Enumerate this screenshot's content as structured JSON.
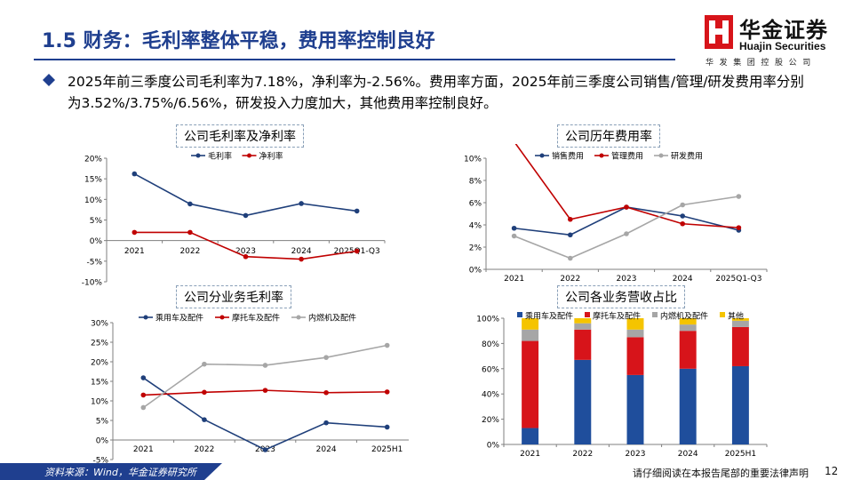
{
  "header": {
    "title": "1.5 财务：毛利率整体平稳，费用率控制良好",
    "logo": {
      "name_cn": "华金证券",
      "name_en": "Huajin Securities",
      "subtitle": "华发集团控股公司"
    }
  },
  "bullet": {
    "text": "2025年前三季度公司毛利率为7.18%，净利率为-2.56%。费用率方面，2025年前三季度公司销售/管理/研发费用率分别为3.52%/3.75%/6.56%，研发投入力度加大，其他费用率控制良好。"
  },
  "footer": {
    "source": "资料来源：Wind，华金证券研究所",
    "disclaimer": "请仔细阅读在本报告尾部的重要法律声明",
    "page": "12"
  },
  "colors": {
    "brand": "#1f3f8f",
    "logo_red": "#d7141a",
    "navy": "#1f3f7a",
    "red": "#c00000",
    "gray": "#a6a6a6",
    "blue": "#1f4e9c",
    "red_bar": "#d7141a",
    "gray_bar": "#a6a6a6",
    "yellow": "#f5c400"
  },
  "chart_data": [
    {
      "id": "margin",
      "type": "line",
      "title": "公司毛利率及净利率",
      "categories": [
        "2021",
        "2022",
        "2023",
        "2024",
        "2025Q1-Q3"
      ],
      "series": [
        {
          "name": "毛利率",
          "color": "#1f3f7a",
          "values": [
            16.2,
            8.9,
            6.1,
            9.0,
            7.18
          ]
        },
        {
          "name": "净利率",
          "color": "#c00000",
          "values": [
            2.0,
            2.0,
            -3.9,
            -4.5,
            -2.56
          ]
        }
      ],
      "ylim": [
        -10,
        20
      ],
      "yticks": [
        "-10%",
        "-5%",
        "0%",
        "5%",
        "10%",
        "15%",
        "20%"
      ],
      "legend": "top-center"
    },
    {
      "id": "expense",
      "type": "line",
      "title": "公司历年费用率",
      "categories": [
        "2021",
        "2022",
        "2023",
        "2024",
        "2025Q1-Q3"
      ],
      "series": [
        {
          "name": "销售费用",
          "color": "#1f3f7a",
          "values": [
            3.7,
            3.1,
            5.6,
            4.8,
            3.52
          ]
        },
        {
          "name": "管理费用",
          "color": "#c00000",
          "values": [
            11.5,
            4.5,
            5.6,
            4.1,
            3.75
          ]
        },
        {
          "name": "研发费用",
          "color": "#a6a6a6",
          "values": [
            3.0,
            1.0,
            3.2,
            5.8,
            6.56
          ]
        }
      ],
      "ylim": [
        0,
        10
      ],
      "yticks": [
        "0%",
        "2%",
        "4%",
        "6%",
        "8%",
        "10%"
      ],
      "legend": "top-center"
    },
    {
      "id": "segment-margin",
      "type": "line",
      "title": "公司分业务毛利率",
      "categories": [
        "2021",
        "2022",
        "2023",
        "2024",
        "2025H1"
      ],
      "series": [
        {
          "name": "乘用车及配件",
          "color": "#1f3f7a",
          "values": [
            15.9,
            5.2,
            -2.5,
            4.4,
            3.3
          ]
        },
        {
          "name": "摩托车及配件",
          "color": "#c00000",
          "values": [
            11.5,
            12.2,
            12.7,
            12.1,
            12.3
          ]
        },
        {
          "name": "内燃机及配件",
          "color": "#a6a6a6",
          "values": [
            8.3,
            19.4,
            19.1,
            21.1,
            24.2
          ]
        }
      ],
      "ylim": [
        -5,
        30
      ],
      "yticks": [
        "-5%",
        "0%",
        "5%",
        "10%",
        "15%",
        "20%",
        "25%",
        "30%"
      ],
      "legend": "top-center"
    },
    {
      "id": "revenue-mix",
      "type": "bar",
      "stacked": true,
      "title": "公司各业务营收占比",
      "categories": [
        "2021",
        "2022",
        "2023",
        "2024",
        "2025H1"
      ],
      "series": [
        {
          "name": "乘用车及配件",
          "color": "#1f4e9c",
          "values": [
            13,
            67,
            55,
            60,
            62
          ]
        },
        {
          "name": "摩托车及配件",
          "color": "#d7141a",
          "values": [
            69,
            24,
            30,
            30,
            31
          ]
        },
        {
          "name": "内燃机及配件",
          "color": "#a6a6a6",
          "values": [
            9,
            5,
            6,
            5,
            5
          ]
        },
        {
          "name": "其他",
          "color": "#f5c400",
          "values": [
            9,
            4,
            9,
            5,
            2
          ]
        }
      ],
      "ylim": [
        0,
        100
      ],
      "yticks": [
        "0%",
        "20%",
        "40%",
        "60%",
        "80%",
        "100%"
      ],
      "legend": "top-center"
    }
  ]
}
